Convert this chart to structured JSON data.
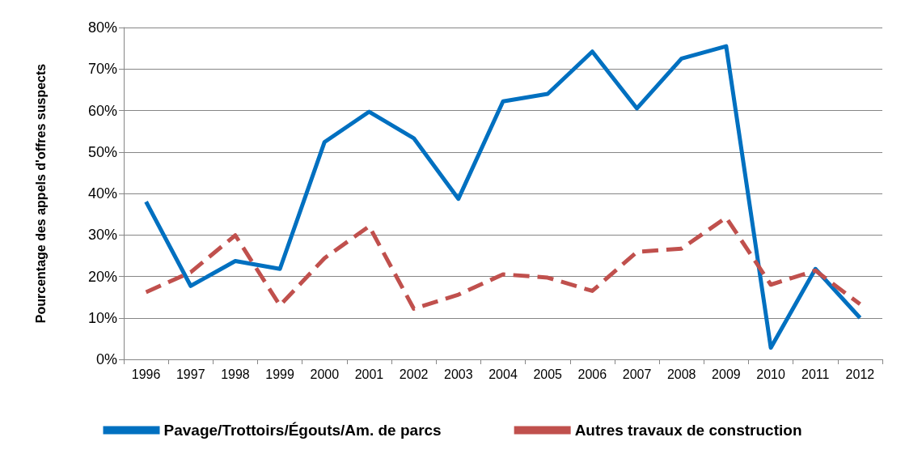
{
  "chart_data": {
    "type": "line",
    "ylabel": "Pourcentage des appels d'offres suspects",
    "categories": [
      "1996",
      "1997",
      "1998",
      "1999",
      "2000",
      "2001",
      "2002",
      "2003",
      "2004",
      "2005",
      "2006",
      "2007",
      "2008",
      "2009",
      "2010",
      "2011",
      "2012"
    ],
    "series": [
      {
        "name": "Pavage/Trottoirs/Égouts/Am. de parcs",
        "color": "#0070c0",
        "line_style": "solid",
        "values": [
          38,
          17.7,
          23.7,
          21.8,
          52.4,
          59.7,
          53.3,
          38.7,
          62.2,
          64,
          74.2,
          60.5,
          72.5,
          75.5,
          2.8,
          21.8,
          10
        ]
      },
      {
        "name": "Autres travaux de construction",
        "color": "#c0504d",
        "line_style": "dashed",
        "values": [
          16.2,
          21,
          29.9,
          13,
          24.4,
          32.1,
          12.2,
          15.6,
          20.5,
          19.7,
          16.5,
          25.9,
          26.7,
          34.2,
          18,
          21.4,
          13.3
        ]
      }
    ],
    "ylim": [
      0,
      80
    ],
    "yticks": [
      {
        "value": 0,
        "label": "0%"
      },
      {
        "value": 10,
        "label": "10%"
      },
      {
        "value": 20,
        "label": "20%"
      },
      {
        "value": 30,
        "label": "30%"
      },
      {
        "value": 40,
        "label": "40%"
      },
      {
        "value": 50,
        "label": "50%"
      },
      {
        "value": 60,
        "label": "60%"
      },
      {
        "value": 70,
        "label": "70%"
      },
      {
        "value": 80,
        "label": "80%"
      }
    ],
    "grid": "y",
    "legend": "bottom",
    "marker": "none"
  }
}
